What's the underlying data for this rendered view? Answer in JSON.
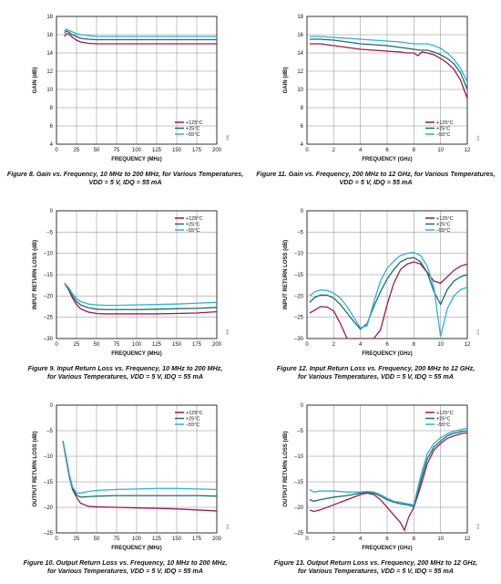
{
  "colors": {
    "t125": "#a0174b",
    "t25": "#1e6d6a",
    "tm55": "#2bb1d9",
    "grid": "#888888"
  },
  "chart_data": [
    {
      "id": "fig8",
      "type": "line",
      "fig_no": "008",
      "caption_line1": "Figure 8. Gain vs. Frequency, 10 MHz to 200 MHz, for Various Temperatures,",
      "caption_line2": "VDD = 5 V, IDQ = 55 mA",
      "xlabel": "FREQUENCY (MHz)",
      "ylabel": "GAIN (dB)",
      "xlim": [
        0,
        200
      ],
      "ylim": [
        4,
        18
      ],
      "xticks": [
        "0",
        "25",
        "50",
        "75",
        "100",
        "125",
        "150",
        "175",
        "200"
      ],
      "yticks": [
        "4",
        "6",
        "8",
        "10",
        "12",
        "14",
        "16",
        "18"
      ],
      "grid": true,
      "legend_position": "lower-right",
      "series": [
        {
          "name": "+125°C",
          "color_key": "t125",
          "x": [
            10,
            12,
            15,
            20,
            25,
            30,
            40,
            50,
            75,
            100,
            125,
            150,
            175,
            200
          ],
          "y": [
            15.8,
            16.1,
            16.1,
            15.7,
            15.4,
            15.2,
            15.05,
            15.0,
            15.0,
            15.0,
            15.0,
            15.0,
            15.0,
            15.0
          ]
        },
        {
          "name": "+25°C",
          "color_key": "t25",
          "x": [
            10,
            12,
            15,
            20,
            25,
            30,
            40,
            50,
            75,
            100,
            125,
            150,
            175,
            200
          ],
          "y": [
            16.2,
            16.4,
            16.3,
            16.0,
            15.8,
            15.6,
            15.5,
            15.45,
            15.45,
            15.45,
            15.45,
            15.45,
            15.45,
            15.45
          ]
        },
        {
          "name": "–55°C",
          "color_key": "tm55",
          "x": [
            10,
            12,
            15,
            20,
            25,
            30,
            40,
            50,
            75,
            100,
            125,
            150,
            175,
            200
          ],
          "y": [
            16.4,
            16.6,
            16.5,
            16.3,
            16.1,
            16.0,
            15.9,
            15.8,
            15.8,
            15.8,
            15.8,
            15.8,
            15.8,
            15.8
          ]
        }
      ]
    },
    {
      "id": "fig11",
      "type": "line",
      "fig_no": "011",
      "caption_line1": "Figure 11. Gain vs. Frequency, 200 MHz to 12 GHz, for Various Temperatures,",
      "caption_line2": "VDD = 5 V, IDQ = 55 mA",
      "xlabel": "FREQUENCY (GHz)",
      "ylabel": "GAIN (dB)",
      "xlim": [
        0,
        12
      ],
      "ylim": [
        4,
        18
      ],
      "xticks": [
        "0",
        "2",
        "4",
        "6",
        "8",
        "10",
        "12"
      ],
      "yticks": [
        "4",
        "6",
        "8",
        "10",
        "12",
        "14",
        "16",
        "18"
      ],
      "grid": true,
      "legend_position": "lower-right",
      "series": [
        {
          "name": "+125°C",
          "color_key": "t125",
          "x": [
            0.2,
            1,
            2,
            3,
            4,
            5,
            6,
            7,
            7.5,
            8,
            8.3,
            8.6,
            9,
            9.5,
            10,
            10.5,
            11,
            11.5,
            12
          ],
          "y": [
            15.0,
            15.0,
            14.8,
            14.6,
            14.4,
            14.3,
            14.2,
            14.1,
            14.0,
            14.0,
            13.7,
            14.1,
            14.0,
            13.8,
            13.4,
            12.9,
            12.2,
            11.0,
            9.0
          ]
        },
        {
          "name": "+25°C",
          "color_key": "t25",
          "x": [
            0.2,
            1,
            2,
            3,
            4,
            5,
            6,
            7,
            7.5,
            8,
            8.5,
            9,
            9.5,
            10,
            10.5,
            11,
            11.5,
            12
          ],
          "y": [
            15.5,
            15.5,
            15.4,
            15.2,
            15.0,
            14.9,
            14.8,
            14.6,
            14.5,
            14.4,
            14.3,
            14.3,
            14.1,
            13.8,
            13.4,
            12.8,
            11.8,
            10.0
          ]
        },
        {
          "name": "–55°C",
          "color_key": "tm55",
          "x": [
            0.2,
            1,
            2,
            3,
            4,
            5,
            6,
            7,
            7.5,
            8,
            8.5,
            9,
            9.5,
            10,
            10.5,
            11,
            11.5,
            12
          ],
          "y": [
            15.8,
            15.8,
            15.7,
            15.6,
            15.5,
            15.4,
            15.3,
            15.2,
            15.1,
            15.0,
            15.0,
            15.0,
            14.8,
            14.5,
            14.0,
            13.3,
            12.3,
            10.8
          ]
        }
      ]
    },
    {
      "id": "fig9",
      "type": "line",
      "fig_no": "009",
      "caption_line1": "Figure 9. Input Return Loss vs. Frequency, 10 MHz to 200 MHz,",
      "caption_line2": "for Various Temperatures, VDD = 5 V, IDQ = 55 mA",
      "xlabel": "FREQUENCY (MHz)",
      "ylabel": "INPUT RETURN LOSS (dB)",
      "xlim": [
        0,
        200
      ],
      "ylim": [
        -30,
        0
      ],
      "xticks": [
        "0",
        "25",
        "50",
        "75",
        "100",
        "125",
        "150",
        "175",
        "200"
      ],
      "yticks": [
        "0",
        "–5",
        "–10",
        "–15",
        "–20",
        "–25",
        "–30"
      ],
      "grid": true,
      "legend_position": "upper-right",
      "series": [
        {
          "name": "+125°C",
          "color_key": "t125",
          "x": [
            10,
            15,
            20,
            25,
            30,
            40,
            50,
            60,
            75,
            100,
            125,
            150,
            175,
            200
          ],
          "y": [
            -17.0,
            -18.5,
            -20.5,
            -22.0,
            -23.0,
            -23.8,
            -24.1,
            -24.2,
            -24.2,
            -24.2,
            -24.2,
            -24.1,
            -24.0,
            -23.7
          ]
        },
        {
          "name": "+25°C",
          "color_key": "t25",
          "x": [
            10,
            15,
            20,
            25,
            30,
            40,
            50,
            60,
            75,
            100,
            125,
            150,
            175,
            200
          ],
          "y": [
            -17.0,
            -18.3,
            -20.0,
            -21.3,
            -22.1,
            -22.8,
            -23.1,
            -23.2,
            -23.2,
            -23.2,
            -23.1,
            -23.0,
            -22.9,
            -22.7
          ]
        },
        {
          "name": "–55°C",
          "color_key": "tm55",
          "x": [
            10,
            15,
            20,
            25,
            30,
            40,
            50,
            60,
            75,
            100,
            125,
            150,
            175,
            200
          ],
          "y": [
            -17.0,
            -18.0,
            -19.5,
            -20.6,
            -21.3,
            -21.9,
            -22.1,
            -22.2,
            -22.2,
            -22.1,
            -22.0,
            -21.9,
            -21.7,
            -21.5
          ]
        }
      ]
    },
    {
      "id": "fig12",
      "type": "line",
      "fig_no": "012",
      "caption_line1": "Figure 12. Input Return Loss vs. Frequency, 200 MHz to 12 GHz,",
      "caption_line2": "for Various Temperatures, VDD = 5 V, IDQ = 55 mA",
      "xlabel": "FREQUENCY (GHz)",
      "ylabel": "INPUT RETURN LOSS (dB)",
      "xlim": [
        0,
        12
      ],
      "ylim": [
        -30,
        0
      ],
      "xticks": [
        "0",
        "2",
        "4",
        "6",
        "8",
        "10",
        "12"
      ],
      "yticks": [
        "0",
        "–5",
        "–10",
        "–15",
        "–20",
        "–25",
        "–30"
      ],
      "grid": true,
      "legend_position": "upper-right",
      "series": [
        {
          "name": "+125°C",
          "color_key": "t125",
          "x": [
            0.2,
            0.6,
            1,
            1.5,
            2,
            2.5,
            3,
            3.5,
            4,
            4.5,
            5,
            5.5,
            6,
            6.5,
            7,
            7.5,
            8,
            8.5,
            9,
            9.5,
            10,
            10.5,
            11,
            11.5,
            12
          ],
          "y": [
            -24.0,
            -23.3,
            -22.5,
            -22.6,
            -23.5,
            -26.5,
            -30,
            -30,
            -30,
            -30,
            -30,
            -28.0,
            -22.0,
            -17.0,
            -13.8,
            -12.5,
            -12.0,
            -12.5,
            -14.5,
            -16.5,
            -17.0,
            -15.5,
            -14.0,
            -13.0,
            -12.5
          ]
        },
        {
          "name": "+25°C",
          "color_key": "t25",
          "x": [
            0.2,
            0.6,
            1,
            1.5,
            2,
            2.5,
            3,
            3.5,
            4,
            4.5,
            5,
            5.5,
            6,
            6.5,
            7,
            7.5,
            8,
            8.5,
            9,
            9.5,
            10,
            10.5,
            11,
            11.5,
            12
          ],
          "y": [
            -21.5,
            -20.3,
            -19.8,
            -19.8,
            -20.5,
            -22.0,
            -24.0,
            -26.0,
            -27.8,
            -26.5,
            -22.5,
            -19.0,
            -16.0,
            -13.8,
            -12.0,
            -11.2,
            -11.0,
            -12.0,
            -14.5,
            -19.0,
            -22.0,
            -18.5,
            -16.5,
            -15.5,
            -15.0
          ]
        },
        {
          "name": "–55°C",
          "color_key": "tm55",
          "x": [
            0.2,
            0.6,
            1,
            1.5,
            2,
            2.5,
            3,
            3.5,
            4,
            4.5,
            5,
            5.5,
            6,
            6.5,
            7,
            7.5,
            8,
            8.5,
            9,
            9.5,
            10,
            10.5,
            11,
            11.5,
            12
          ],
          "y": [
            -20.0,
            -19.0,
            -18.6,
            -18.7,
            -19.3,
            -20.5,
            -22.5,
            -25.0,
            -27.5,
            -27.0,
            -21.5,
            -16.5,
            -13.5,
            -11.8,
            -10.5,
            -10.0,
            -9.8,
            -10.5,
            -13.0,
            -18.0,
            -29.5,
            -23.0,
            -20.0,
            -18.5,
            -18.0
          ]
        }
      ]
    },
    {
      "id": "fig10",
      "type": "line",
      "fig_no": "010",
      "caption_line1": "Figure 10. Output Return Loss vs. Frequency, 10 MHz to 200 MHz,",
      "caption_line2": "for Various Temperatures, VDD = 5 V, IDQ = 55 mA",
      "xlabel": "FREQUENCY (MHz)",
      "ylabel": "OUTPUT RETURN LOSS (dB)",
      "xlim": [
        0,
        200
      ],
      "ylim": [
        -25,
        0
      ],
      "xticks": [
        "0",
        "25",
        "50",
        "75",
        "100",
        "125",
        "150",
        "175",
        "200"
      ],
      "yticks": [
        "0",
        "–5",
        "–10",
        "–15",
        "–20",
        "–25"
      ],
      "grid": true,
      "legend_position": "upper-right",
      "series": [
        {
          "name": "+125°C",
          "color_key": "t125",
          "x": [
            8,
            12,
            16,
            20,
            25,
            30,
            40,
            50,
            75,
            100,
            125,
            150,
            175,
            200
          ],
          "y": [
            -7.0,
            -10.5,
            -14.0,
            -16.5,
            -18.0,
            -19.2,
            -19.8,
            -19.9,
            -20.0,
            -20.1,
            -20.2,
            -20.3,
            -20.5,
            -20.7
          ]
        },
        {
          "name": "+25°C",
          "color_key": "t25",
          "x": [
            8,
            12,
            16,
            20,
            25,
            30,
            40,
            50,
            75,
            100,
            125,
            150,
            175,
            200
          ],
          "y": [
            -7.0,
            -10.3,
            -13.8,
            -16.3,
            -17.6,
            -18.0,
            -17.9,
            -17.8,
            -17.7,
            -17.7,
            -17.7,
            -17.7,
            -17.7,
            -17.8
          ]
        },
        {
          "name": "–55°C",
          "color_key": "tm55",
          "x": [
            8,
            12,
            16,
            20,
            25,
            30,
            40,
            50,
            75,
            100,
            125,
            150,
            175,
            200
          ],
          "y": [
            -7.0,
            -10.0,
            -13.5,
            -16.0,
            -17.2,
            -17.2,
            -16.9,
            -16.7,
            -16.5,
            -16.4,
            -16.3,
            -16.3,
            -16.4,
            -16.5
          ]
        }
      ]
    },
    {
      "id": "fig13",
      "type": "line",
      "fig_no": "013",
      "caption_line1": "Figure 13. Output Return Loss vs. Frequency, 200 MHz to 12 GHz,",
      "caption_line2": "for Various Temperatures, VDD = 5 V, IDQ = 55 mA",
      "xlabel": "FREQUENCY (GHz)",
      "ylabel": "OUTPUT RETURN LOSS (dB)",
      "xlim": [
        0,
        12
      ],
      "ylim": [
        -25,
        0
      ],
      "xticks": [
        "0",
        "2",
        "4",
        "6",
        "8",
        "10",
        "12"
      ],
      "yticks": [
        "0",
        "–5",
        "–10",
        "–15",
        "–20",
        "–25"
      ],
      "grid": true,
      "legend_position": "upper-right",
      "series": [
        {
          "name": "+125°C",
          "color_key": "t125",
          "x": [
            0.2,
            0.5,
            1,
            2,
            3,
            4,
            4.5,
            5,
            5.5,
            6,
            6.5,
            7,
            7.3,
            7.6,
            8,
            8.5,
            9,
            9.5,
            10,
            10.5,
            11,
            11.5,
            12
          ],
          "y": [
            -20.5,
            -20.8,
            -20.5,
            -19.5,
            -18.5,
            -17.5,
            -17.2,
            -17.5,
            -18.5,
            -20.0,
            -21.5,
            -23.0,
            -24.5,
            -22.0,
            -20.0,
            -16.0,
            -11.5,
            -8.8,
            -7.5,
            -6.5,
            -6.0,
            -5.6,
            -5.4
          ]
        },
        {
          "name": "+25°C",
          "color_key": "t25",
          "x": [
            0.2,
            0.5,
            1,
            2,
            3,
            4,
            4.5,
            5,
            5.5,
            6,
            6.5,
            7,
            7.5,
            8,
            8.5,
            9,
            9.5,
            10,
            10.5,
            11,
            11.5,
            12
          ],
          "y": [
            -18.5,
            -18.8,
            -18.5,
            -18.0,
            -17.7,
            -17.2,
            -17.0,
            -17.2,
            -17.8,
            -18.5,
            -19.0,
            -19.3,
            -19.5,
            -19.8,
            -15.0,
            -10.5,
            -8.2,
            -7.0,
            -6.0,
            -5.5,
            -5.2,
            -5.0
          ]
        },
        {
          "name": "–55°C",
          "color_key": "tm55",
          "x": [
            0.2,
            0.5,
            1,
            2,
            3,
            4,
            4.5,
            5,
            5.5,
            6,
            6.5,
            7,
            7.5,
            8,
            8.5,
            9,
            9.5,
            10,
            10.5,
            11,
            11.5,
            12
          ],
          "y": [
            -16.5,
            -17.0,
            -16.8,
            -16.8,
            -17.0,
            -17.0,
            -16.9,
            -17.0,
            -17.5,
            -18.2,
            -18.8,
            -19.0,
            -19.3,
            -19.5,
            -14.0,
            -9.5,
            -7.5,
            -6.4,
            -5.6,
            -5.1,
            -4.8,
            -4.5
          ]
        }
      ]
    }
  ]
}
